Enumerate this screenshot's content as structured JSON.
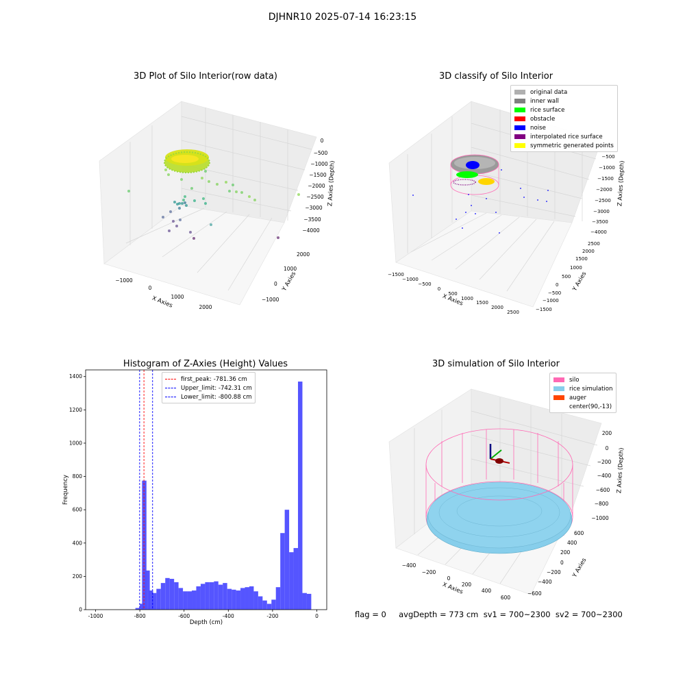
{
  "suptitle": "DJHNR10 2025-07-14 16:23:15",
  "footer": "flag = 0     avgDepth = 773 cm  sv1 = 700~2300  sv2 = 700~2300",
  "colors": {
    "gridline": "#d6d6d6",
    "pane": "#f2f2f2",
    "silo": "#ff69b4",
    "rice_simulation": "#87ceeb",
    "auger": "#ff4500",
    "hist_bar": "#4c4cff"
  },
  "chart_data": [
    {
      "type": "scatter",
      "title": "3D Plot of Silo Interior(row data)",
      "xlabel": "X Axies",
      "ylabel": "Y Axies",
      "zlabel": "Z Axies (Depth)",
      "x_ticks": [
        "−1000",
        "0",
        "1000",
        "2000"
      ],
      "y_ticks": [
        "−1000",
        "0",
        "1000",
        "2000"
      ],
      "z_ticks": [
        "0",
        "−500",
        "−1000",
        "−1500",
        "−2000",
        "−2500",
        "−3000",
        "−3500",
        "−4000"
      ],
      "colormap": "viridis",
      "points_desc": "dense disc of rice surface points near top, sparse points below"
    },
    {
      "type": "scatter",
      "title": "3D classify of Silo Interior",
      "xlabel": "X Axies",
      "ylabel": "Y Axies",
      "zlabel": "Z Axies (Depth)",
      "x_ticks": [
        "−1500",
        "−1000",
        "−500",
        "0",
        "500",
        "1000",
        "1500",
        "2000",
        "2500"
      ],
      "y_ticks": [
        "−1500",
        "−1000",
        "−500",
        "0",
        "500",
        "1000",
        "1500",
        "2000",
        "2500"
      ],
      "z_ticks": [
        "0",
        "−500",
        "−1000",
        "−1500",
        "−2000",
        "−2500",
        "−3000",
        "−3500",
        "−4000"
      ],
      "legend": [
        {
          "label": "original data",
          "color": "#b0b0b0"
        },
        {
          "label": "inner wall",
          "color": "#808080"
        },
        {
          "label": "rice surface",
          "color": "#00ff00"
        },
        {
          "label": "obstacle",
          "color": "#ff0000"
        },
        {
          "label": "noise",
          "color": "#0000ff"
        },
        {
          "label": "interpolated rice surface",
          "color": "#800080"
        },
        {
          "label": "symmetric generated points",
          "color": "#ffff00"
        }
      ]
    },
    {
      "type": "bar",
      "title": "Histogram of Z-Axies (Height) Values",
      "xlabel": "Depth (cm)",
      "ylabel": "Frequency",
      "xlim": [
        -1045,
        45
      ],
      "ylim": [
        0,
        1440
      ],
      "x_ticks": [
        -1000,
        -800,
        -600,
        -400,
        -200,
        0
      ],
      "y_ticks": [
        0,
        200,
        400,
        600,
        800,
        1000,
        1200,
        1400
      ],
      "bin_width": 20,
      "bins": [
        [
          -820,
          10
        ],
        [
          -800,
          35
        ],
        [
          -790,
          775
        ],
        [
          -775,
          235
        ],
        [
          -760,
          115
        ],
        [
          -745,
          100
        ],
        [
          -725,
          125
        ],
        [
          -705,
          160
        ],
        [
          -685,
          190
        ],
        [
          -665,
          185
        ],
        [
          -645,
          165
        ],
        [
          -625,
          130
        ],
        [
          -605,
          110
        ],
        [
          -585,
          110
        ],
        [
          -565,
          115
        ],
        [
          -545,
          140
        ],
        [
          -525,
          155
        ],
        [
          -505,
          165
        ],
        [
          -485,
          165
        ],
        [
          -465,
          170
        ],
        [
          -445,
          150
        ],
        [
          -425,
          160
        ],
        [
          -405,
          125
        ],
        [
          -385,
          120
        ],
        [
          -365,
          115
        ],
        [
          -345,
          130
        ],
        [
          -325,
          135
        ],
        [
          -305,
          140
        ],
        [
          -285,
          110
        ],
        [
          -265,
          80
        ],
        [
          -245,
          55
        ],
        [
          -225,
          35
        ],
        [
          -205,
          60
        ],
        [
          -185,
          135
        ],
        [
          -165,
          460
        ],
        [
          -145,
          600
        ],
        [
          -125,
          345
        ],
        [
          -105,
          370
        ],
        [
          -85,
          1370
        ],
        [
          -65,
          100
        ],
        [
          -45,
          95
        ]
      ],
      "vlines": [
        {
          "label": "first_peak: -781.36 cm",
          "x": -781.36,
          "color": "#ff0000"
        },
        {
          "label": "Upper_limit: -742.31 cm",
          "x": -742.31,
          "color": "#0000ff"
        },
        {
          "label": "Lower_limit: -800.88 cm",
          "x": -800.88,
          "color": "#0000ff"
        }
      ]
    },
    {
      "type": "surface",
      "title": "3D simulation of Silo Interior",
      "xlabel": "X Axies",
      "ylabel": "Y Axies",
      "zlabel": "Z Axies (Depth)",
      "x_ticks": [
        "−400",
        "−200",
        "0",
        "200",
        "400",
        "600"
      ],
      "y_ticks": [
        "−600",
        "−400",
        "−200",
        "0",
        "200",
        "400",
        "600"
      ],
      "z_ticks": [
        "200",
        "0",
        "−200",
        "−400",
        "−600",
        "−800",
        "−1000"
      ],
      "legend": [
        {
          "label": "silo",
          "color": "#ff69b4"
        },
        {
          "label": "rice simulation",
          "color": "#87ceeb"
        },
        {
          "label": "auger",
          "color": "#ff4500"
        },
        {
          "label": "center(90,-13)",
          "color": "#ffffff"
        }
      ]
    }
  ]
}
